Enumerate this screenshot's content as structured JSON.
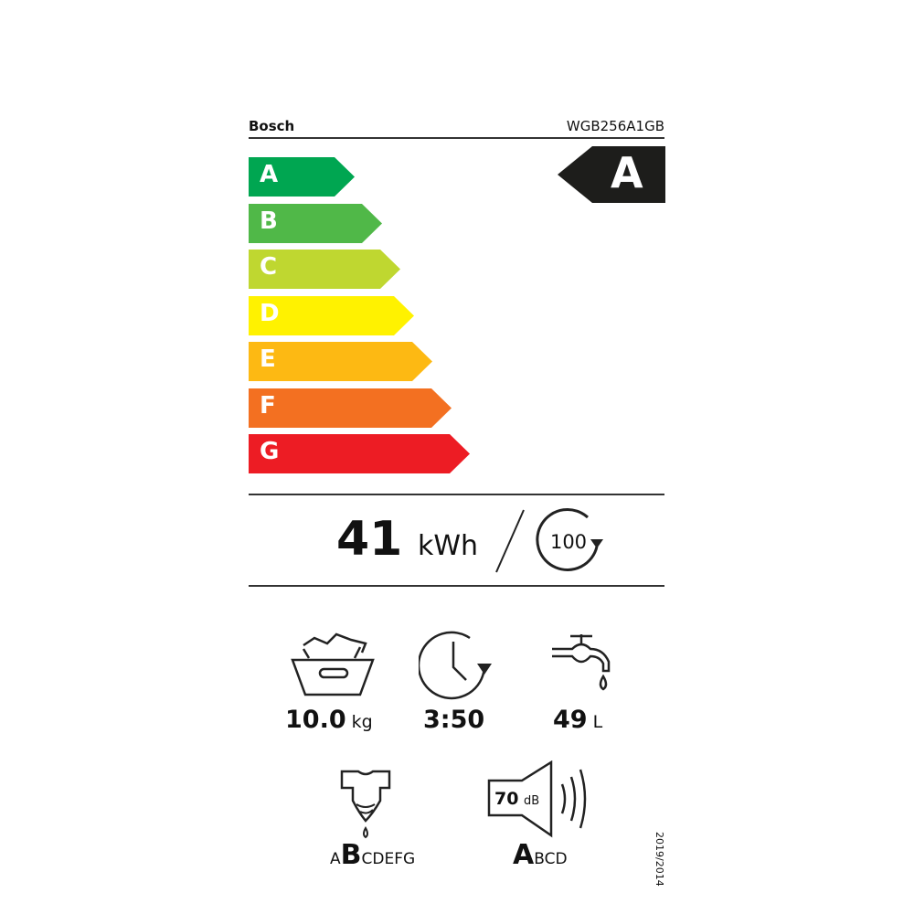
{
  "header": {
    "brand": "Bosch",
    "model": "WGB256A1GB"
  },
  "energy_scale": {
    "classes": [
      {
        "label": "A",
        "color": "#00a651"
      },
      {
        "label": "B",
        "color": "#50b848"
      },
      {
        "label": "C",
        "color": "#bfd730"
      },
      {
        "label": "D",
        "color": "#fff200"
      },
      {
        "label": "E",
        "color": "#fdb913"
      },
      {
        "label": "F",
        "color": "#f37021"
      },
      {
        "label": "G",
        "color": "#ed1c24"
      }
    ],
    "rating": "A"
  },
  "consumption": {
    "value": "41",
    "unit": "kWh",
    "cycles": "100"
  },
  "specs": {
    "capacity": {
      "value": "10.0",
      "unit": "kg",
      "icon": "laundry-basket-icon"
    },
    "duration": {
      "value": "3:50",
      "icon": "clock-icon"
    },
    "water": {
      "value": "49",
      "unit": "L",
      "icon": "tap-icon"
    },
    "spin_class": {
      "before": "A",
      "selected": "B",
      "after": "CDEFG",
      "icon": "shirt-drip-icon"
    },
    "noise": {
      "value": "70",
      "unit": "dB",
      "selected": "A",
      "after": "BCD",
      "icon": "speaker-icon"
    }
  },
  "regulation": "2019/2014"
}
